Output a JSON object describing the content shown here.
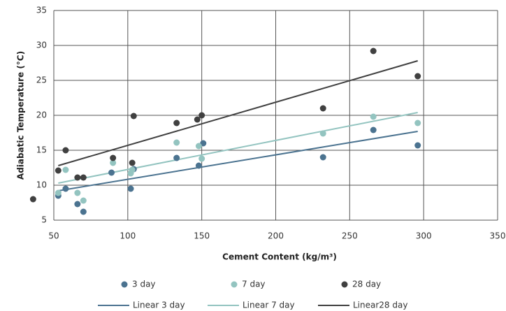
{
  "chart_data": {
    "type": "scatter",
    "xlabel": "Cement Content (kg/m³)",
    "ylabel": "Adiabatic Temperature (°C)",
    "xlim": [
      50,
      350
    ],
    "xticks": [
      50,
      100,
      150,
      200,
      250,
      300,
      350
    ],
    "ylim": [
      5,
      35
    ],
    "yticks": [
      5,
      10,
      15,
      20,
      25,
      30,
      35
    ],
    "grid": true,
    "legend": "bottom",
    "series": [
      {
        "name": "3 day",
        "color": "#4b7390",
        "x": [
          53,
          58,
          66,
          70,
          89,
          102,
          104,
          133,
          148,
          151,
          232,
          266,
          296
        ],
        "values": [
          8.5,
          9.5,
          7.3,
          6.2,
          11.8,
          9.5,
          12.3,
          13.9,
          12.8,
          16,
          14,
          17.9,
          15.7
        ]
      },
      {
        "name": "7 day",
        "color": "#93c4c0",
        "x": [
          53,
          58,
          66,
          70,
          90,
          102,
          103,
          133,
          148,
          150,
          232,
          266,
          296
        ],
        "values": [
          8.9,
          12.2,
          8.9,
          7.8,
          13.2,
          11.7,
          12.2,
          16.1,
          15.6,
          13.8,
          17.4,
          19.8,
          18.9
        ]
      },
      {
        "name": "28 day",
        "color": "#404040",
        "x": [
          36,
          53,
          58,
          66,
          70,
          90,
          103,
          104,
          133,
          147,
          150,
          232,
          266,
          296
        ],
        "values": [
          8,
          12.1,
          15,
          11.1,
          11.1,
          13.9,
          13.2,
          19.9,
          18.9,
          19.4,
          20,
          21,
          29.2,
          25.6
        ]
      }
    ],
    "trendlines": [
      {
        "name": "Linear 3 day",
        "color": "#4b7390",
        "x": [
          53,
          296
        ],
        "values": [
          9.2,
          17.7
        ]
      },
      {
        "name": "Linear 7 day",
        "color": "#93c4c0",
        "x": [
          53,
          296
        ],
        "values": [
          10.3,
          20.4
        ]
      },
      {
        "name": "Linear28 day",
        "color": "#404040",
        "x": [
          53,
          296
        ],
        "values": [
          12.8,
          27.8
        ]
      }
    ]
  }
}
